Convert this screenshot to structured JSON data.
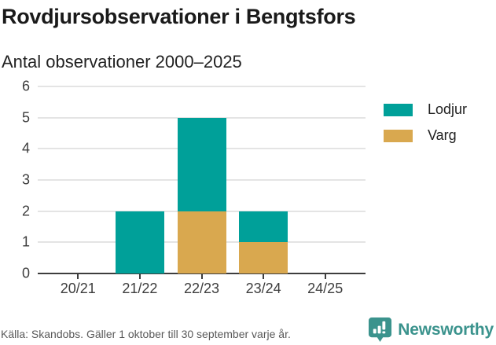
{
  "header": {
    "title": "Rovdjursobservationer i Bengtsfors",
    "subtitle": "Antal observationer 2000–2025"
  },
  "chart_data": {
    "type": "bar",
    "stacked": true,
    "title": "Rovdjursobservationer i Bengtsfors",
    "subtitle": "Antal observationer 2000–2025",
    "categories": [
      "20/21",
      "21/22",
      "22/23",
      "23/24",
      "24/25"
    ],
    "series": [
      {
        "name": "Lodjur",
        "color": "#00a099",
        "values": [
          0,
          2,
          3,
          1,
          0
        ]
      },
      {
        "name": "Varg",
        "color": "#d9a84f",
        "values": [
          0,
          0,
          2,
          1,
          0
        ]
      }
    ],
    "stack_totals": [
      0,
      2,
      5,
      2,
      0
    ],
    "xlabel": "",
    "ylabel": "",
    "ylim": [
      0,
      6
    ],
    "yticks": [
      0,
      1,
      2,
      3,
      4,
      5,
      6
    ],
    "grid": "horizontal",
    "legend_position": "top-right",
    "stack_order_bottom_to_top": [
      "Varg",
      "Lodjur"
    ]
  },
  "footer": {
    "source": "Källa: Skandobs. Gäller 1 oktober till 30 september varje år.",
    "brand": "Newsworthy"
  },
  "colors": {
    "lodjur_teal": "#00a099",
    "varg_gold": "#d9a84f",
    "brand_teal": "#3b938d",
    "grid": "#e4e4e4",
    "axis": "#3d3d3d",
    "title_text": "#1a1a1a",
    "source_text": "#595959"
  }
}
